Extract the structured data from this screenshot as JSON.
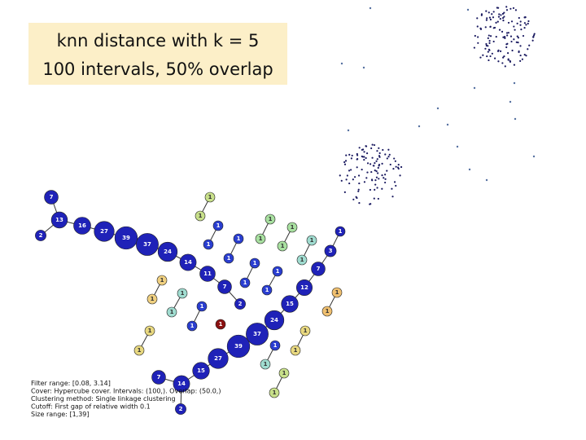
{
  "title": {
    "lines": [
      "knn distance with k = 5",
      "100 intervals, 50% overlap"
    ]
  },
  "nodes": [
    {
      "size": 7,
      "color": "#1f22b8"
    },
    {
      "size": 13,
      "color": "#1f22b8"
    },
    {
      "size": 2,
      "color": "#1f22b8"
    },
    {
      "size": 16,
      "color": "#1f22b8"
    },
    {
      "size": 27,
      "color": "#1f22b8"
    },
    {
      "size": 39,
      "color": "#1f22b8"
    },
    {
      "size": 37,
      "color": "#1f22b8"
    },
    {
      "size": 24,
      "color": "#1f22b8"
    },
    {
      "size": 14,
      "color": "#1f22b8"
    },
    {
      "size": 11,
      "color": "#1f22b8"
    },
    {
      "size": 7,
      "color": "#1f22b8"
    },
    {
      "size": 2,
      "color": "#1f22b8"
    },
    {
      "size": 1,
      "color": "#1f22b8"
    },
    {
      "size": 3,
      "color": "#1f22b8"
    },
    {
      "size": 7,
      "color": "#1f22b8"
    },
    {
      "size": 12,
      "color": "#1f22b8"
    },
    {
      "size": 15,
      "color": "#1f22b8"
    },
    {
      "size": 24,
      "color": "#1f22b8"
    },
    {
      "size": 37,
      "color": "#1f22b8"
    },
    {
      "size": 39,
      "color": "#1f22b8"
    },
    {
      "size": 27,
      "color": "#1f22b8"
    },
    {
      "size": 15,
      "color": "#1f22b8"
    },
    {
      "size": 14,
      "color": "#1f22b8"
    },
    {
      "size": 7,
      "color": "#1f22b8"
    },
    {
      "size": 2,
      "color": "#1f22b8"
    },
    {
      "size": 1,
      "color": "#c8e08a"
    },
    {
      "size": 1,
      "color": "#c8e08a"
    },
    {
      "size": 1,
      "color": "#2a3ed0"
    },
    {
      "size": 1,
      "color": "#2a3ed0"
    },
    {
      "size": 1,
      "color": "#2a3ed0"
    },
    {
      "size": 1,
      "color": "#2a3ed0"
    },
    {
      "size": 1,
      "color": "#a8e0a0"
    },
    {
      "size": 1,
      "color": "#a8e0a0"
    },
    {
      "size": 1,
      "color": "#a8e0a0"
    },
    {
      "size": 1,
      "color": "#a8e0a0"
    },
    {
      "size": 1,
      "color": "#a0dcd0"
    },
    {
      "size": 1,
      "color": "#a0dcd0"
    },
    {
      "size": 1,
      "color": "#2a3ed0"
    },
    {
      "size": 1,
      "color": "#2a3ed0"
    },
    {
      "size": 1,
      "color": "#2a3ed0"
    },
    {
      "size": 1,
      "color": "#2a3ed0"
    },
    {
      "size": 1,
      "color": "#f0d080"
    },
    {
      "size": 1,
      "color": "#f0d080"
    },
    {
      "size": 1,
      "color": "#a0dcd0"
    },
    {
      "size": 1,
      "color": "#a0dcd0"
    },
    {
      "size": 1,
      "color": "#2a3ed0"
    },
    {
      "size": 1,
      "color": "#2a3ed0"
    },
    {
      "size": 1,
      "color": "#8a1010"
    },
    {
      "size": 1,
      "color": "#e8d880"
    },
    {
      "size": 1,
      "color": "#e8d880"
    },
    {
      "size": 1,
      "color": "#e8d880"
    },
    {
      "size": 1,
      "color": "#e8d880"
    },
    {
      "size": 1,
      "color": "#2a3ed0"
    },
    {
      "size": 1,
      "color": "#a0dcd0"
    },
    {
      "size": 1,
      "color": "#c8e08a"
    },
    {
      "size": 1,
      "color": "#c8e08a"
    },
    {
      "size": 1,
      "color": "#f0c070"
    },
    {
      "size": 1,
      "color": "#f0c070"
    }
  ],
  "info": [
    "Filter range: [0.08, 3.14]",
    "Cover: Hypercube cover. Intervals: (100,). Overlap: (50.0,)",
    "Clustering method: Single linkage clustering",
    "Cutoff: First gap of relative width 0.1",
    "Size range: [1,39]"
  ]
}
